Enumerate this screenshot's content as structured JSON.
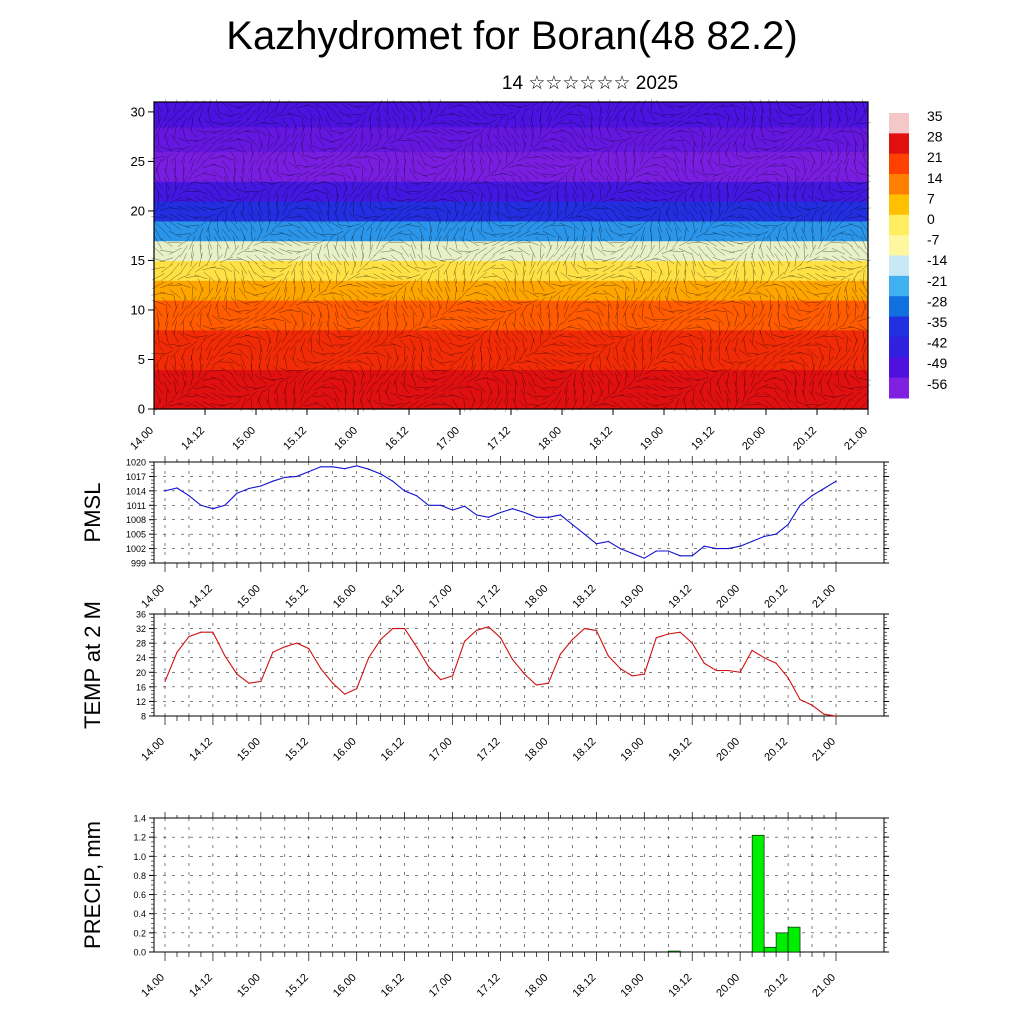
{
  "title": "Kazhydromet for Boran(48 82.2)",
  "subtitle": "14 ☆☆☆☆☆☆ 2025",
  "colors": {
    "pmsl": "#1010d0",
    "temp": "#d01010",
    "precip": "#00ee00"
  },
  "chart_data": [
    {
      "type": "heatmap",
      "name": "cross-section",
      "title": "",
      "ylabel": "",
      "ylim": [
        0,
        31
      ],
      "yticks": [
        0,
        5,
        10,
        15,
        20,
        25,
        30
      ],
      "xticks": [
        "14.00",
        "14.12",
        "15.00",
        "15.12",
        "16.00",
        "16.12",
        "17.00",
        "17.12",
        "18.00",
        "18.12",
        "19.00",
        "19.12",
        "20.00",
        "20.12",
        "21.00"
      ],
      "bands": [
        {
          "from": 0,
          "to": 4,
          "value": 28
        },
        {
          "from": 4,
          "to": 8,
          "value": 24
        },
        {
          "from": 8,
          "to": 11,
          "value": 18
        },
        {
          "from": 11,
          "to": 13,
          "value": 10
        },
        {
          "from": 13,
          "to": 15,
          "value": 2
        },
        {
          "from": 15,
          "to": 17,
          "value": -10
        },
        {
          "from": 17,
          "to": 19,
          "value": -24
        },
        {
          "from": 19,
          "to": 21,
          "value": -36
        },
        {
          "from": 21,
          "to": 23,
          "value": -46
        },
        {
          "from": 23,
          "to": 26,
          "value": -55
        },
        {
          "from": 26,
          "to": 28.5,
          "value": -52
        },
        {
          "from": 28.5,
          "to": 31,
          "value": -48
        }
      ],
      "colorbar": {
        "labels": [
          "35",
          "28",
          "21",
          "14",
          "7",
          "0",
          "-7",
          "-14",
          "-21",
          "-28",
          "-35",
          "-42",
          "-49",
          "-56"
        ],
        "stops": [
          "#f4c8c8",
          "#e01010",
          "#ff4000",
          "#ff8000",
          "#ffc000",
          "#ffee60",
          "#fff6a0",
          "#c8e8f8",
          "#40b0f0",
          "#1070e0",
          "#2030e0",
          "#3020e0",
          "#5010e0",
          "#8020e0"
        ]
      }
    },
    {
      "type": "line",
      "name": "pmsl",
      "ylabel": "PMSL",
      "ylim": [
        999,
        1020
      ],
      "yticks": [
        999,
        1002,
        1005,
        1008,
        1011,
        1014,
        1017,
        1020
      ],
      "xticks": [
        "14.00",
        "14.12",
        "15.00",
        "15.12",
        "16.00",
        "16.12",
        "17.00",
        "17.12",
        "18.00",
        "18.12",
        "19.00",
        "19.12",
        "20.00",
        "20.12",
        "21.00"
      ],
      "x": [
        0,
        3,
        6,
        9,
        12,
        15,
        18,
        21,
        24,
        27,
        30,
        33,
        36,
        39,
        42,
        45,
        48,
        51,
        54,
        57,
        60,
        63,
        66,
        69,
        72,
        75,
        78,
        81,
        84,
        87,
        90,
        93,
        96,
        99,
        102,
        105,
        108,
        111,
        114,
        117,
        120,
        123,
        126,
        129,
        132,
        135,
        138,
        141,
        144,
        147,
        150,
        153,
        156,
        159,
        162,
        165,
        168
      ],
      "values": [
        1014,
        1014.6,
        1013,
        1011,
        1010.3,
        1011,
        1013.5,
        1014.5,
        1015,
        1016,
        1016.8,
        1017,
        1018,
        1019,
        1019,
        1018.6,
        1019.2,
        1018.5,
        1017.5,
        1016,
        1014,
        1013,
        1011,
        1011,
        1010,
        1010.8,
        1009,
        1008.5,
        1009.5,
        1010.3,
        1009.5,
        1008.5,
        1008.5,
        1009,
        1007,
        1005,
        1003,
        1003.5,
        1002,
        1001,
        1000,
        1001.5,
        1001.5,
        1000.5,
        1000.5,
        1002.5,
        1002,
        1002,
        1002.5,
        1003.5,
        1004.5,
        1005,
        1007,
        1011,
        1013,
        1014.5,
        1016
      ]
    },
    {
      "type": "line",
      "name": "temp",
      "ylabel": "TEMP at 2 M",
      "ylim": [
        8,
        36
      ],
      "yticks": [
        8,
        12,
        16,
        20,
        24,
        28,
        32,
        36
      ],
      "xticks": [
        "14.00",
        "14.12",
        "15.00",
        "15.12",
        "16.00",
        "16.12",
        "17.00",
        "17.12",
        "18.00",
        "18.12",
        "19.00",
        "19.12",
        "20.00",
        "20.12",
        "21.00"
      ],
      "x": [
        0,
        3,
        6,
        9,
        12,
        15,
        18,
        21,
        24,
        27,
        30,
        33,
        36,
        39,
        42,
        45,
        48,
        51,
        54,
        57,
        60,
        63,
        66,
        69,
        72,
        75,
        78,
        81,
        84,
        87,
        90,
        93,
        96,
        99,
        102,
        105,
        108,
        111,
        114,
        117,
        120,
        123,
        126,
        129,
        132,
        135,
        138,
        141,
        144,
        147,
        150,
        153,
        156,
        159,
        162,
        165,
        168
      ],
      "values": [
        17.5,
        25.5,
        29.8,
        31,
        31,
        24.5,
        19.5,
        17,
        17.5,
        25.5,
        27,
        28,
        26.5,
        21,
        17,
        14,
        15.5,
        24,
        29,
        32,
        32,
        27,
        21.5,
        18,
        19,
        28.5,
        31.5,
        32.5,
        29.5,
        23.5,
        19.5,
        16.5,
        17,
        25,
        29,
        32,
        31.5,
        24.5,
        21,
        19,
        19.5,
        29.5,
        30.5,
        31,
        28,
        22.5,
        20.5,
        20.5,
        20,
        26,
        24,
        22.5,
        18.5,
        12.5,
        11,
        8.5,
        8
      ]
    },
    {
      "type": "bar",
      "name": "precip",
      "ylabel": "PRECIP, mm",
      "ylim": [
        0,
        1.4
      ],
      "yticks": [
        "0.0",
        "0.2",
        "0.4",
        "0.6",
        "0.8",
        "1.0",
        "1.2",
        "1.4"
      ],
      "xticks": [
        "14.00",
        "14.12",
        "15.00",
        "15.12",
        "16.00",
        "16.12",
        "17.00",
        "17.12",
        "18.00",
        "18.12",
        "19.00",
        "19.12",
        "20.00",
        "20.12",
        "21.00"
      ],
      "bars": [
        {
          "start": 126,
          "end": 129,
          "value": 0.01
        },
        {
          "start": 147,
          "end": 150,
          "value": 1.22
        },
        {
          "start": 150,
          "end": 153,
          "value": 0.05
        },
        {
          "start": 153,
          "end": 156,
          "value": 0.2
        },
        {
          "start": 156,
          "end": 159,
          "value": 0.26
        }
      ]
    }
  ]
}
